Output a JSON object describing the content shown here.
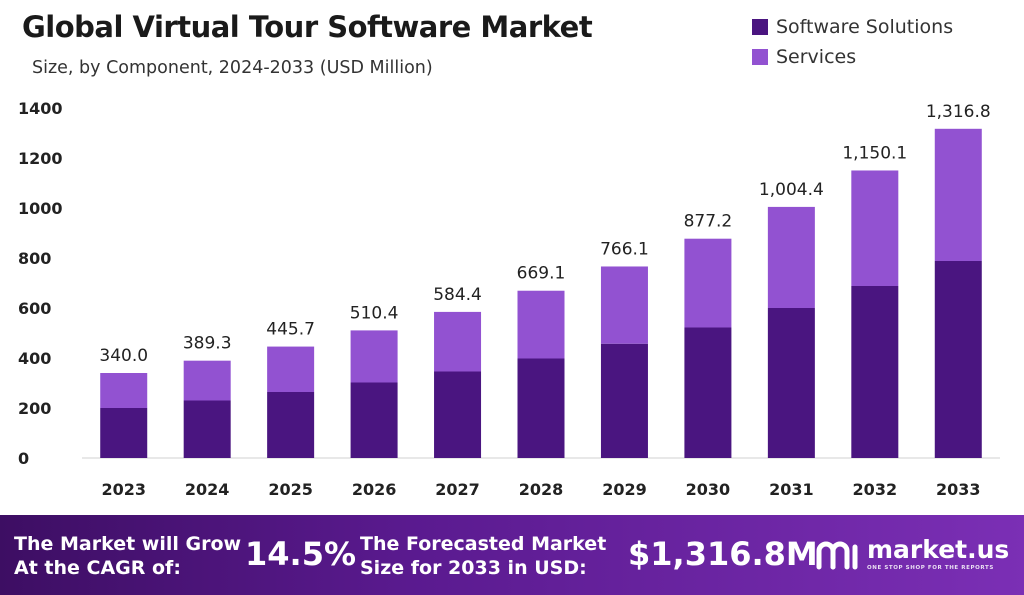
{
  "chart_data": {
    "type": "bar",
    "stacked": true,
    "title": "Global Virtual Tour Software Market",
    "subtitle": "Size, by Component, 2024-2033 (USD Million)",
    "categories": [
      "2023",
      "2024",
      "2025",
      "2026",
      "2027",
      "2028",
      "2029",
      "2030",
      "2031",
      "2032",
      "2033"
    ],
    "series": [
      {
        "name": "Software Solutions",
        "color": "#4a1580",
        "values": [
          200,
          230,
          264,
          302,
          346,
          398,
          457,
          522,
          600,
          688,
          788
        ]
      },
      {
        "name": "Services",
        "color": "#9252d1",
        "values": [
          140.0,
          159.3,
          181.7,
          208.4,
          238.4,
          271.1,
          309.1,
          355.2,
          404.4,
          462.1,
          528.8
        ]
      }
    ],
    "totals": [
      "340.0",
      "389.3",
      "445.7",
      "510.4",
      "584.4",
      "669.1",
      "766.1",
      "877.2",
      "1,004.4",
      "1,150.1",
      "1,316.8"
    ],
    "ylim": [
      0,
      1400
    ],
    "yticks": [
      0,
      200,
      400,
      600,
      800,
      1000,
      1200,
      1400
    ],
    "legend_position": "top-right",
    "grid": false
  },
  "footer": {
    "cagr_label_line1": "The Market will Grow",
    "cagr_label_line2": "At the CAGR of:",
    "cagr_value": "14.5%",
    "forecast_label_line1": "The Forecasted Market",
    "forecast_label_line2": "Size for 2033 in USD:",
    "forecast_value": "$1,316.8M",
    "brand_name": "market.us",
    "brand_tagline": "ONE STOP SHOP FOR THE REPORTS"
  }
}
